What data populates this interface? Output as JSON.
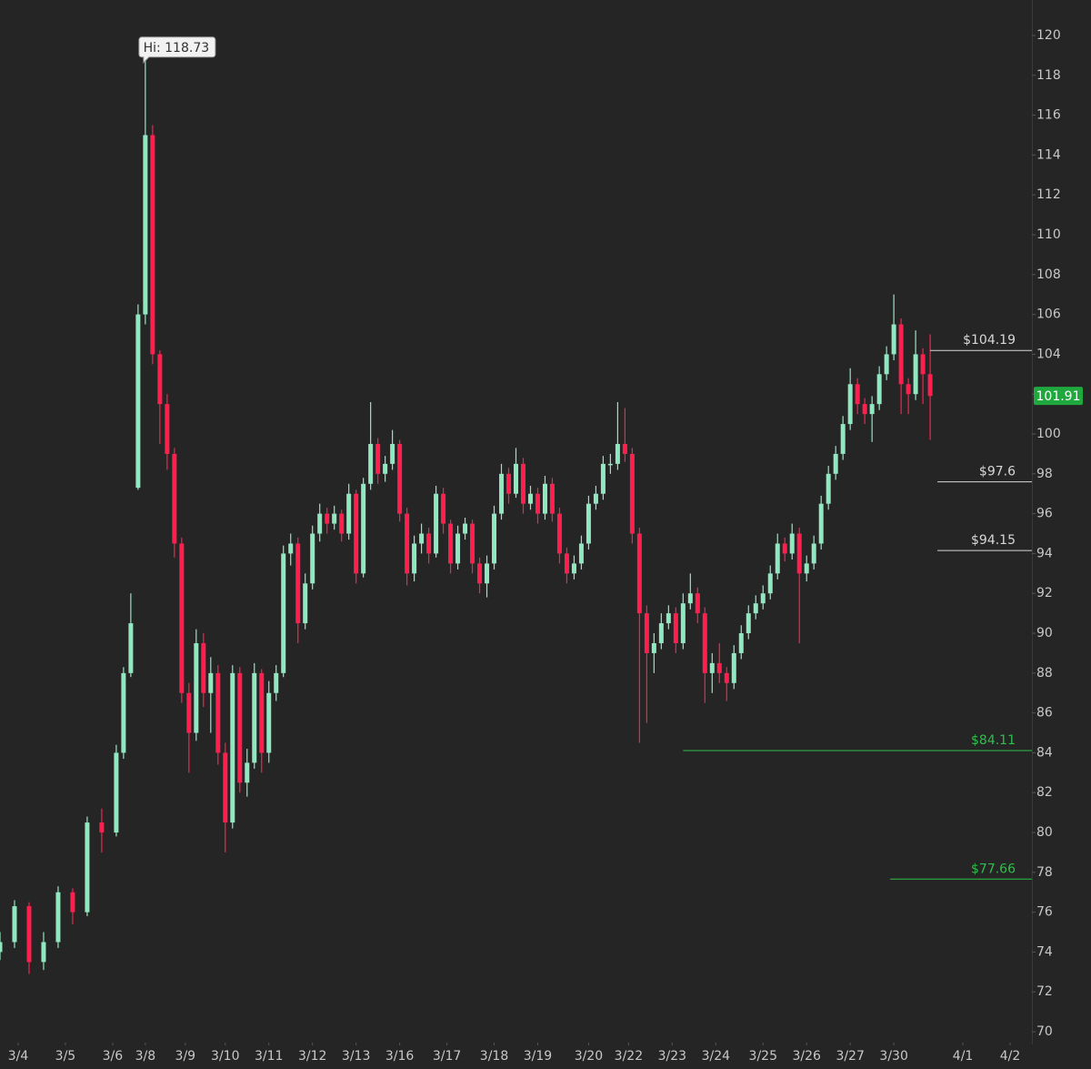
{
  "chart_data": {
    "type": "candlestick",
    "up_color": "#8fe8bf",
    "down_color": "#ff1f4f",
    "ylim": [
      69.5,
      121.78
    ],
    "yticks": [
      70,
      72,
      74,
      76,
      78,
      80,
      82,
      84,
      86,
      88,
      90,
      92,
      94,
      96,
      98,
      100,
      102,
      104,
      106,
      108,
      110,
      112,
      114,
      116,
      118,
      120
    ],
    "xlim": [
      0,
      142
    ],
    "xticks": [
      {
        "value": 2.5,
        "label": "3/4"
      },
      {
        "value": 9,
        "label": "3/5"
      },
      {
        "value": 15.5,
        "label": "3/6"
      },
      {
        "value": 20,
        "label": "3/8"
      },
      {
        "value": 25.5,
        "label": "3/9"
      },
      {
        "value": 31,
        "label": "3/10"
      },
      {
        "value": 37,
        "label": "3/11"
      },
      {
        "value": 43,
        "label": "3/12"
      },
      {
        "value": 49,
        "label": "3/13"
      },
      {
        "value": 55,
        "label": "3/16"
      },
      {
        "value": 61.5,
        "label": "3/17"
      },
      {
        "value": 68,
        "label": "3/18"
      },
      {
        "value": 74,
        "label": "3/19"
      },
      {
        "value": 81,
        "label": "3/20"
      },
      {
        "value": 86.5,
        "label": "3/22"
      },
      {
        "value": 92.5,
        "label": "3/23"
      },
      {
        "value": 98.5,
        "label": "3/24"
      },
      {
        "value": 105,
        "label": "3/25"
      },
      {
        "value": 111,
        "label": "3/26"
      },
      {
        "value": 117,
        "label": "3/27"
      },
      {
        "value": 123,
        "label": "3/30"
      },
      {
        "value": 132.5,
        "label": "4/1"
      },
      {
        "value": 139,
        "label": "4/2"
      }
    ],
    "x": [
      0,
      2,
      4,
      6,
      8,
      10,
      12,
      14,
      16,
      17,
      18,
      19,
      20,
      21,
      22,
      23,
      24,
      25,
      26,
      27,
      28,
      29,
      30,
      31,
      32,
      33,
      34,
      35,
      36,
      37,
      38,
      39,
      40,
      41,
      42,
      43,
      44,
      45,
      46,
      47,
      48,
      49,
      50,
      51,
      52,
      53,
      54,
      55,
      56,
      57,
      58,
      59,
      60,
      61,
      62,
      63,
      64,
      65,
      66,
      67,
      68,
      69,
      70,
      71,
      72,
      73,
      74,
      75,
      76,
      77,
      78,
      79,
      80,
      81,
      82,
      83,
      84,
      85,
      86,
      87,
      88,
      89,
      90,
      91,
      92,
      93,
      94,
      95,
      96,
      97,
      98,
      99,
      100,
      101,
      102,
      103,
      104,
      105,
      106,
      107,
      108,
      109,
      110,
      111,
      112,
      113,
      114,
      115,
      116,
      117,
      118,
      119,
      120,
      121,
      122,
      123,
      124,
      125,
      126,
      127,
      128
    ],
    "ohlc": [
      [
        74.0,
        75.0,
        73.6,
        74.5
      ],
      [
        74.5,
        76.6,
        74.2,
        76.3
      ],
      [
        76.3,
        76.5,
        72.9,
        73.5
      ],
      [
        73.5,
        75.0,
        73.1,
        74.5
      ],
      [
        74.5,
        77.3,
        74.2,
        77.0
      ],
      [
        77.0,
        77.2,
        75.4,
        76.0
      ],
      [
        76.0,
        80.8,
        75.8,
        80.5
      ],
      [
        80.5,
        81.2,
        79.0,
        80.0
      ],
      [
        80.0,
        84.4,
        79.8,
        84.0
      ],
      [
        84.0,
        88.3,
        83.7,
        88.0
      ],
      [
        88.0,
        92.0,
        87.8,
        90.5
      ],
      [
        97.3,
        106.5,
        97.2,
        106.0
      ],
      [
        106.0,
        118.73,
        105.5,
        115.0
      ],
      [
        115.0,
        115.5,
        103.5,
        104.0
      ],
      [
        104.0,
        104.2,
        99.5,
        101.5
      ],
      [
        101.5,
        102.0,
        98.2,
        99.0
      ],
      [
        99.0,
        99.3,
        93.8,
        94.5
      ],
      [
        94.5,
        94.8,
        86.5,
        87.0
      ],
      [
        87.0,
        87.5,
        83.0,
        85.0
      ],
      [
        85.0,
        90.2,
        84.6,
        89.5
      ],
      [
        89.5,
        90.0,
        86.3,
        87.0
      ],
      [
        87.0,
        88.8,
        85.0,
        88.0
      ],
      [
        88.0,
        88.4,
        83.4,
        84.0
      ],
      [
        84.0,
        84.5,
        79.0,
        80.5
      ],
      [
        80.5,
        88.4,
        80.2,
        88.0
      ],
      [
        88.0,
        88.3,
        82.0,
        82.5
      ],
      [
        82.5,
        84.2,
        81.8,
        83.5
      ],
      [
        83.5,
        88.5,
        83.2,
        88.0
      ],
      [
        88.0,
        88.2,
        83.0,
        84.0
      ],
      [
        84.0,
        87.6,
        83.5,
        87.0
      ],
      [
        87.0,
        88.4,
        86.6,
        88.0
      ],
      [
        88.0,
        94.4,
        87.8,
        94.0
      ],
      [
        94.0,
        95.0,
        93.4,
        94.5
      ],
      [
        94.5,
        94.8,
        89.5,
        90.5
      ],
      [
        90.5,
        93.0,
        90.2,
        92.5
      ],
      [
        92.5,
        95.4,
        92.2,
        95.0
      ],
      [
        95.0,
        96.5,
        94.6,
        96.0
      ],
      [
        96.0,
        96.3,
        95.0,
        95.5
      ],
      [
        95.5,
        96.4,
        95.2,
        96.0
      ],
      [
        96.0,
        96.2,
        94.6,
        95.0
      ],
      [
        95.0,
        97.5,
        94.7,
        97.0
      ],
      [
        97.0,
        97.2,
        92.5,
        93.0
      ],
      [
        93.0,
        97.8,
        92.8,
        97.5
      ],
      [
        97.5,
        101.6,
        97.2,
        99.5
      ],
      [
        99.5,
        99.8,
        97.5,
        98.0
      ],
      [
        98.0,
        98.9,
        97.6,
        98.5
      ],
      [
        98.5,
        100.2,
        98.2,
        99.5
      ],
      [
        99.5,
        99.7,
        95.6,
        96.0
      ],
      [
        96.0,
        96.3,
        92.4,
        93.0
      ],
      [
        93.0,
        94.9,
        92.6,
        94.5
      ],
      [
        94.5,
        95.5,
        94.0,
        95.0
      ],
      [
        95.0,
        95.3,
        93.5,
        94.0
      ],
      [
        94.0,
        97.4,
        93.8,
        97.0
      ],
      [
        97.0,
        97.3,
        95.0,
        95.5
      ],
      [
        95.5,
        95.7,
        93.0,
        93.5
      ],
      [
        93.5,
        95.4,
        93.2,
        95.0
      ],
      [
        95.0,
        95.8,
        94.7,
        95.5
      ],
      [
        95.5,
        95.7,
        93.0,
        93.5
      ],
      [
        93.5,
        93.8,
        92.0,
        92.5
      ],
      [
        92.5,
        93.9,
        91.8,
        93.5
      ],
      [
        93.5,
        96.4,
        93.2,
        96.0
      ],
      [
        96.0,
        98.5,
        95.7,
        98.0
      ],
      [
        98.0,
        98.3,
        96.5,
        97.0
      ],
      [
        97.0,
        99.3,
        96.8,
        98.5
      ],
      [
        98.5,
        98.8,
        96.0,
        96.5
      ],
      [
        96.5,
        97.4,
        96.2,
        97.0
      ],
      [
        97.0,
        97.3,
        95.5,
        96.0
      ],
      [
        96.0,
        97.9,
        95.7,
        97.5
      ],
      [
        97.5,
        97.8,
        95.6,
        96.0
      ],
      [
        96.0,
        96.3,
        93.5,
        94.0
      ],
      [
        94.0,
        94.3,
        92.5,
        93.0
      ],
      [
        93.0,
        93.9,
        92.7,
        93.5
      ],
      [
        93.5,
        94.9,
        93.2,
        94.5
      ],
      [
        94.5,
        96.9,
        94.2,
        96.5
      ],
      [
        96.5,
        97.4,
        96.2,
        97.0
      ],
      [
        97.0,
        98.9,
        96.7,
        98.5
      ],
      [
        98.5,
        99.0,
        98.0,
        98.5
      ],
      [
        98.5,
        101.6,
        98.2,
        99.5
      ],
      [
        99.5,
        101.3,
        98.6,
        99.0
      ],
      [
        99.0,
        99.3,
        94.5,
        95.0
      ],
      [
        95.0,
        95.3,
        84.5,
        91.0
      ],
      [
        91.0,
        91.4,
        85.5,
        89.0
      ],
      [
        89.0,
        90.0,
        88.0,
        89.5
      ],
      [
        89.5,
        91.0,
        89.2,
        90.5
      ],
      [
        90.5,
        91.4,
        90.2,
        91.0
      ],
      [
        91.0,
        91.3,
        89.0,
        89.5
      ],
      [
        89.5,
        92.0,
        89.2,
        91.5
      ],
      [
        91.5,
        93.0,
        91.2,
        92.0
      ],
      [
        92.0,
        92.3,
        90.5,
        91.0
      ],
      [
        91.0,
        91.3,
        86.5,
        88.0
      ],
      [
        88.0,
        89.0,
        87.0,
        88.5
      ],
      [
        88.5,
        89.5,
        87.5,
        88.0
      ],
      [
        88.0,
        88.3,
        86.6,
        87.5
      ],
      [
        87.5,
        89.4,
        87.2,
        89.0
      ],
      [
        89.0,
        90.4,
        88.7,
        90.0
      ],
      [
        90.0,
        91.4,
        89.7,
        91.0
      ],
      [
        91.0,
        91.9,
        90.7,
        91.5
      ],
      [
        91.5,
        92.4,
        91.2,
        92.0
      ],
      [
        92.0,
        93.4,
        91.7,
        93.0
      ],
      [
        93.0,
        95.0,
        92.7,
        94.5
      ],
      [
        94.5,
        94.8,
        93.6,
        94.0
      ],
      [
        94.0,
        95.5,
        93.7,
        95.0
      ],
      [
        95.0,
        95.3,
        89.5,
        93.0
      ],
      [
        93.0,
        93.9,
        92.6,
        93.5
      ],
      [
        93.5,
        94.9,
        93.2,
        94.5
      ],
      [
        94.5,
        96.9,
        94.2,
        96.5
      ],
      [
        96.5,
        98.4,
        96.2,
        98.0
      ],
      [
        98.0,
        99.4,
        97.7,
        99.0
      ],
      [
        99.0,
        100.9,
        98.7,
        100.5
      ],
      [
        100.5,
        103.3,
        100.2,
        102.5
      ],
      [
        102.5,
        102.8,
        101.0,
        101.5
      ],
      [
        101.5,
        101.8,
        100.5,
        101.0
      ],
      [
        101.0,
        101.9,
        99.6,
        101.5
      ],
      [
        101.5,
        103.4,
        101.2,
        103.0
      ],
      [
        103.0,
        104.4,
        102.7,
        104.0
      ],
      [
        104.0,
        107.0,
        103.7,
        105.5
      ],
      [
        105.5,
        105.8,
        101.0,
        102.5
      ],
      [
        102.5,
        102.8,
        101.0,
        102.0
      ],
      [
        102.0,
        105.2,
        101.7,
        104.0
      ],
      [
        104.0,
        104.3,
        101.5,
        103.0
      ],
      [
        103.0,
        105.0,
        99.7,
        101.91
      ]
    ],
    "high_marker": {
      "value": 118.73,
      "label": "Hi: 118.73",
      "x": 20
    },
    "last_price": 101.91,
    "last_price_color": "#1fa83d",
    "levels": [
      {
        "value": 104.19,
        "label": "$104.19",
        "x_start": 128,
        "color": "#d8d8d8"
      },
      {
        "value": 97.6,
        "label": "$97.6",
        "x_start": 129,
        "color": "#d8d8d8"
      },
      {
        "value": 94.15,
        "label": "$94.15",
        "x_start": 129,
        "color": "#d8d8d8"
      },
      {
        "value": 84.11,
        "label": "$84.11",
        "x_start": 94,
        "color": "#2fbf4a"
      },
      {
        "value": 77.66,
        "label": "$77.66",
        "x_start": 122.5,
        "color": "#2fbf4a"
      }
    ]
  }
}
